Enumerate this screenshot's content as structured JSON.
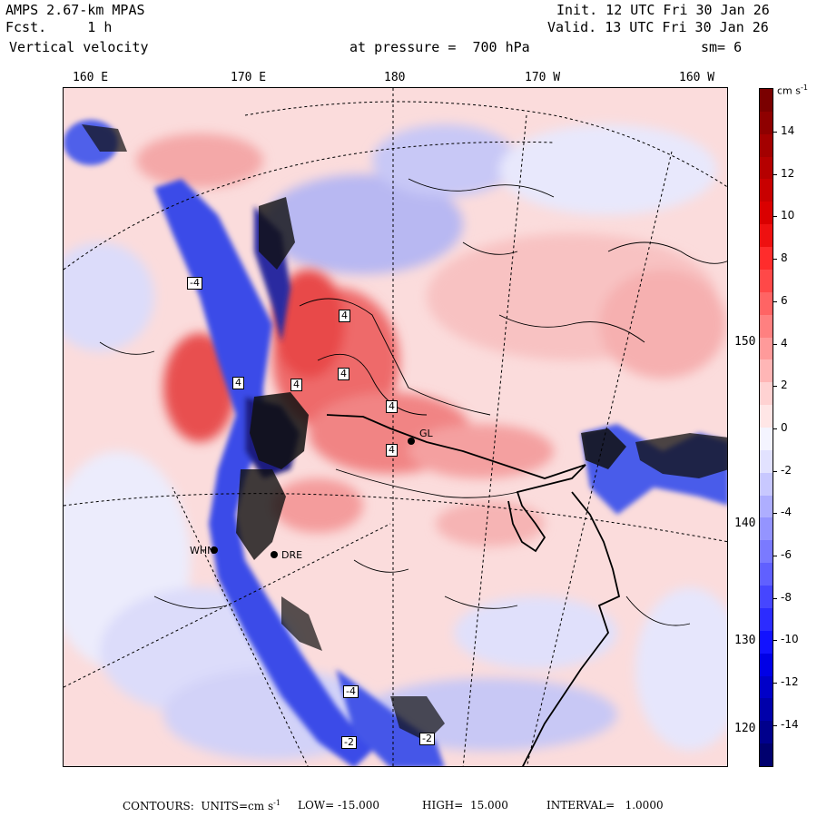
{
  "header": {
    "model": "AMPS 2.67-km MPAS",
    "fcst": "Fcst.     1 h",
    "field": "Vertical velocity",
    "pressure": "at pressure =  700 hPa",
    "init": "Init. 12 UTC Fri 30 Jan 26",
    "valid": "Valid. 13 UTC Fri 30 Jan 26",
    "smoothing": "sm= 6"
  },
  "map": {
    "lon_labels": [
      "160 E",
      "170 E",
      "180",
      "170 W",
      "160 W"
    ],
    "lat_labels": [
      "150 W",
      "140 W",
      "130 W",
      "120 W"
    ],
    "stations": [
      "WHN",
      "DRE",
      "GL"
    ],
    "contour_labels": [
      "-4",
      "4",
      "4",
      "4",
      "4",
      "4",
      "4",
      "-4",
      "-2",
      "-2"
    ],
    "colors": {
      "positive": "#e53030",
      "negative": "#2a3ef0",
      "background": "#fbdcdc"
    }
  },
  "colorbar": {
    "unit": "cm s",
    "unit_exp": "-1",
    "labels": [
      "14",
      "12",
      "10",
      "8",
      "6",
      "4",
      "2",
      "0",
      "-2",
      "-4",
      "-6",
      "-8",
      "-10",
      "-12",
      "-14"
    ],
    "colors": [
      "#7a0000",
      "#8e0000",
      "#a30000",
      "#b50000",
      "#c80000",
      "#da0000",
      "#ee1010",
      "#ff2c2c",
      "#ff4848",
      "#ff6464",
      "#ff8080",
      "#ff9a9a",
      "#ffb6b6",
      "#ffd2d2",
      "#ffe6e6",
      "#f4f4ff",
      "#e2e2ff",
      "#c8c8ff",
      "#aeaeff",
      "#9494ff",
      "#7a7aff",
      "#6060ff",
      "#4646ff",
      "#2c2cff",
      "#1212ff",
      "#0000e6",
      "#0000c8",
      "#0000aa",
      "#00008c",
      "#00006e"
    ]
  },
  "footer": {
    "contours": "CONTOURS:  UNITS=cm s",
    "units_exp": "-1",
    "low": "LOW= -15.000",
    "high": "HIGH=  15.000",
    "interval": "INTERVAL=   1.0000"
  }
}
